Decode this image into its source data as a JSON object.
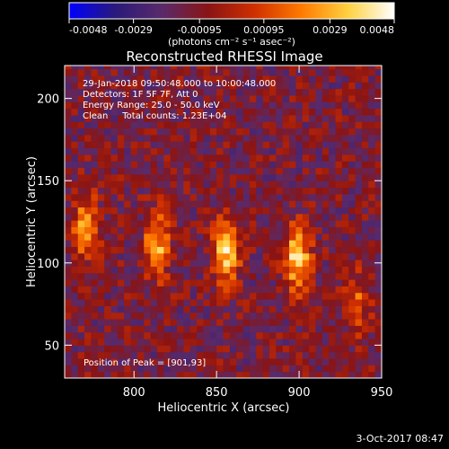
{
  "chart_data": {
    "type": "heatmap",
    "title": "Reconstructed RHESSI Image",
    "xlabel": "Heliocentric X (arcsec)",
    "ylabel": "Heliocentric Y (arcsec)",
    "xlim": [
      758,
      950
    ],
    "ylim": [
      30,
      220
    ],
    "x_ticks": [
      800,
      850,
      900,
      950
    ],
    "y_ticks": [
      50,
      100,
      150,
      200
    ],
    "grid": false,
    "colorbar": {
      "units_label": "(photons cm⁻² s⁻¹ asec⁻²)",
      "range": [
        -0.0048,
        0.0048
      ],
      "ticks": [
        -0.0048,
        -0.0029,
        -0.00095,
        0.00095,
        0.0029,
        0.0048
      ],
      "tick_labels": [
        "-0.0048",
        "-0.0029",
        "-0.00095",
        "0.00095",
        "0.0029",
        "0.0048"
      ],
      "colors": [
        "#0000ff",
        "#2a1a7a",
        "#5a2a6a",
        "#8a1414",
        "#d03000",
        "#ff7a00",
        "#ffd040",
        "#ffffff"
      ]
    },
    "annotations": [
      "29-Jan-2018 09:50:48.000 to 10:00:48.000",
      "Detectors: 1F 5F 7F, Att 0",
      "Energy Range: 25.0 - 50.0 keV",
      "Clean     Total counts: 1.23E+04"
    ],
    "peak_label": "Position of Peak = [901,93]",
    "sources": [
      {
        "x": 771,
        "y": 122,
        "intensity": 0.0036
      },
      {
        "x": 814,
        "y": 111,
        "intensity": 0.004
      },
      {
        "x": 856,
        "y": 107,
        "intensity": 0.0046
      },
      {
        "x": 899,
        "y": 103,
        "intensity": 0.0048
      },
      {
        "x": 935,
        "y": 75,
        "intensity": 0.0024
      }
    ]
  },
  "timestamp": "3-Oct-2017 08:47"
}
